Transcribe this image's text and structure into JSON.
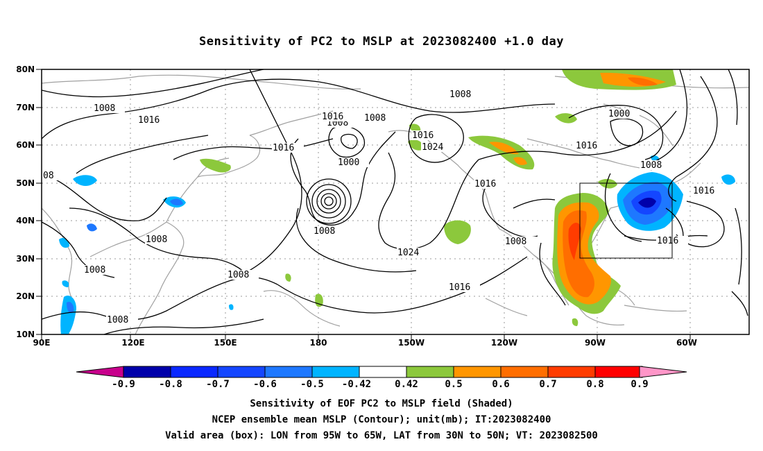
{
  "title": "Sensitivity of PC2 to MSLP at 2023082400 +1.0 day",
  "map": {
    "lat_labels": [
      "80N",
      "70N",
      "60N",
      "50N",
      "40N",
      "30N",
      "20N",
      "10N"
    ],
    "lon_labels": [
      "90E",
      "120E",
      "150E",
      "180",
      "150W",
      "120W",
      "90W",
      "60W"
    ],
    "lat_range": [
      10,
      80
    ],
    "lon_range_east": [
      90,
      330
    ],
    "valid_box": {
      "lon_west": 95,
      "lon_east": 65,
      "lat_south": 30,
      "lat_north": 50
    },
    "contour_labels": [
      "1008",
      "1016",
      "1008",
      "1016",
      "1008",
      "1000",
      "1016",
      "1024",
      "1016",
      "1008",
      "1000",
      "1008",
      "1016",
      "1016",
      "1008",
      "1008",
      "1024",
      "1016",
      "1008",
      "1016",
      "1008",
      "1008",
      "1008",
      "08"
    ],
    "colors": {
      "contour": "#000000",
      "coast": "#a0a0a0",
      "grid": "#9a9a9a"
    }
  },
  "colorbar": {
    "labels": [
      "-0.9",
      "-0.8",
      "-0.7",
      "-0.6",
      "-0.5",
      "-0.42",
      "0.42",
      "0.5",
      "0.6",
      "0.7",
      "0.8",
      "0.9"
    ],
    "colors": [
      "#0000aa",
      "#0a28ff",
      "#1446ff",
      "#1e78ff",
      "#00b4ff",
      "#ffffff",
      "#8cc83c",
      "#ff9600",
      "#ff6e00",
      "#ff3c00",
      "#ff0000"
    ],
    "low_end_color": "#c8008c",
    "high_end_color": "#ff96c8"
  },
  "captions": {
    "line1": "Sensitivity of EOF PC2 to MSLP field (Shaded)",
    "line2": "NCEP ensemble mean MSLP (Contour); unit(mb); IT:2023082400",
    "line3": "Valid area (box): LON from 95W to 65W, LAT from 30N to 50N; VT: 2023082500"
  }
}
